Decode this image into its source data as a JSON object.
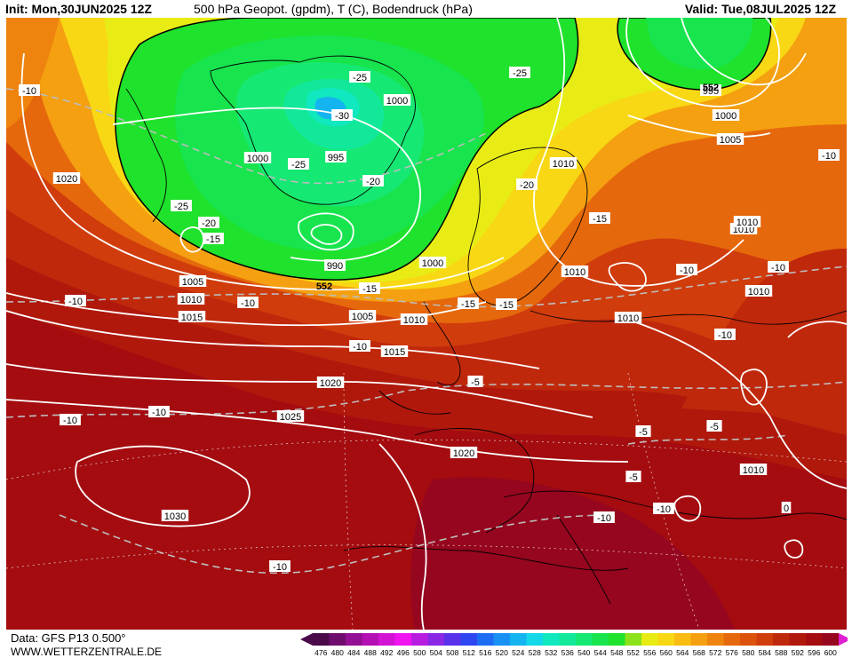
{
  "header": {
    "init": "Init: Mon,30JUN2025 12Z",
    "title": "500 hPa Geopot. (gpdm), T (C), Bodendruck (hPa)",
    "valid": "Valid: Tue,08JUL2025 12Z"
  },
  "footer": {
    "data_source": "Data: GFS P13 0.500°",
    "website": "WWW.WETTERZENTRALE.DE"
  },
  "legend": {
    "values": [
      "476",
      "480",
      "484",
      "488",
      "492",
      "496",
      "500",
      "504",
      "508",
      "512",
      "516",
      "520",
      "524",
      "528",
      "532",
      "536",
      "540",
      "544",
      "548",
      "552",
      "556",
      "560",
      "564",
      "568",
      "572",
      "576",
      "580",
      "584",
      "588",
      "592",
      "596",
      "600"
    ],
    "colors": [
      "#4a0a4a",
      "#6e0d6e",
      "#930f93",
      "#b311b3",
      "#d313d3",
      "#f014f0",
      "#b81ee0",
      "#8a28e6",
      "#5a32ea",
      "#2f46f0",
      "#1e6cf4",
      "#1990f4",
      "#14b4f0",
      "#12d8e8",
      "#10e8c0",
      "#12e89a",
      "#16e874",
      "#18e44e",
      "#1ee22c",
      "#8ce21a",
      "#e8ec14",
      "#f8d814",
      "#f8bc12",
      "#f4a010",
      "#ee840e",
      "#e6680c",
      "#dc520c",
      "#d03c0c",
      "#c0280c",
      "#b0180c",
      "#a40c10",
      "#96061e"
    ],
    "arrow_left_color": "#4a0a4a",
    "arrow_right_color": "#e020d0"
  },
  "map": {
    "pressure_labels": [
      "1020",
      "1005",
      "1010",
      "1015",
      "1000",
      "995",
      "1000",
      "990",
      "1005",
      "1010",
      "1015",
      "1020",
      "1025",
      "1030",
      "1000",
      "1010",
      "1010",
      "1020",
      "1010",
      "1010",
      "1010",
      "1005",
      "1000",
      "995",
      "1010",
      "1010"
    ],
    "temperature_labels": [
      "-10",
      "-25",
      "-30",
      "-25",
      "-25",
      "-20",
      "-25",
      "-20",
      "-15",
      "-15",
      "-10",
      "-15",
      "-15",
      "-10",
      "-20",
      "-15",
      "-10",
      "-10",
      "-10",
      "-10",
      "-10",
      "-10",
      "-10",
      "-5",
      "-5",
      "-5",
      "-5",
      "-10",
      "-10",
      "-10",
      "0"
    ],
    "contour_labels": [
      "552",
      "552"
    ]
  }
}
